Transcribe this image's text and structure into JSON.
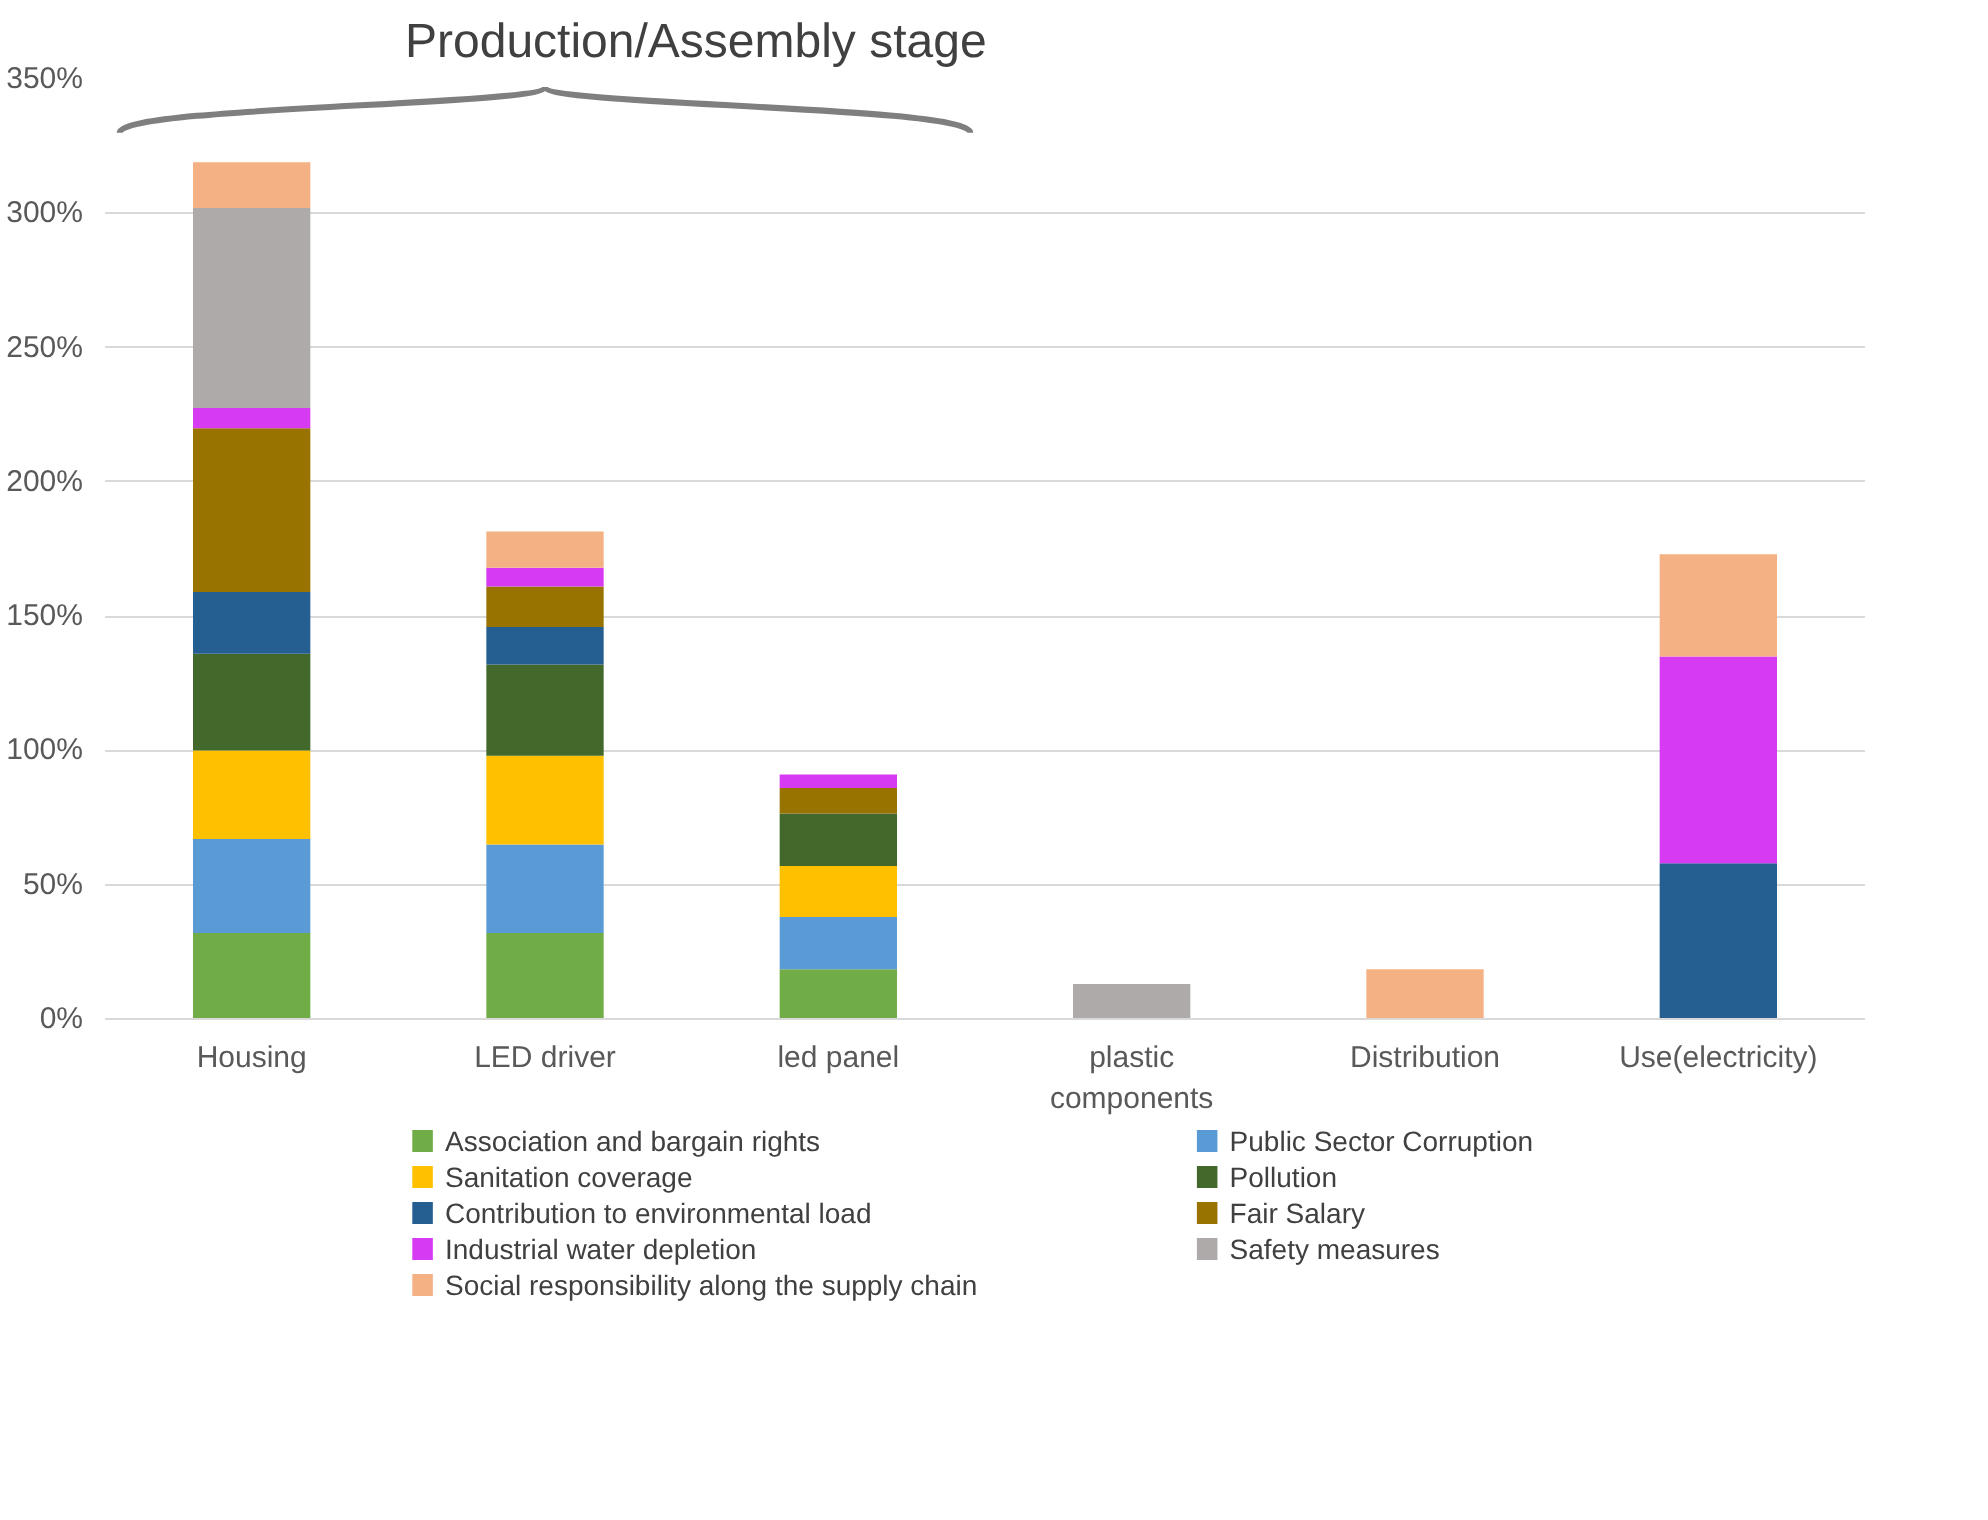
{
  "chart_data": {
    "type": "bar",
    "stacked": true,
    "categories": [
      "Housing",
      "LED driver",
      "led panel",
      "plastic components",
      "Distribution",
      "Use(electricity)"
    ],
    "series": [
      {
        "name": "Association and bargain rights",
        "color": "#70ad47",
        "values": [
          32,
          32,
          18.5,
          null,
          null,
          null
        ]
      },
      {
        "name": "Public Sector Corruption",
        "color": "#5b9bd5",
        "values": [
          35,
          33,
          19.5,
          null,
          null,
          null
        ]
      },
      {
        "name": "Sanitation coverage",
        "color": "#ffc000",
        "values": [
          33,
          33,
          19,
          null,
          null,
          null
        ]
      },
      {
        "name": "Pollution",
        "color": "#43682b",
        "values": [
          36,
          34,
          19.5,
          null,
          null,
          null
        ]
      },
      {
        "name": "Contribution to environmental load",
        "color": "#255e91",
        "values": [
          23,
          14,
          null,
          null,
          null,
          58
        ]
      },
      {
        "name": "Fair Salary",
        "color": "#997300",
        "values": [
          61,
          15,
          9.5,
          null,
          null,
          null
        ]
      },
      {
        "name": "Industrial water depletion",
        "color": "#d63af2",
        "values": [
          7.5,
          7,
          5,
          null,
          null,
          77
        ]
      },
      {
        "name": "Safety measures",
        "color": "#aeaaaa",
        "values": [
          74.5,
          null,
          null,
          13,
          null,
          null
        ]
      },
      {
        "name": "Social responsibility along the supply chain",
        "color": "#f4b183",
        "values": [
          17,
          13.5,
          null,
          null,
          18.5,
          38
        ]
      }
    ],
    "ylim": [
      0,
      350
    ],
    "yticks": [
      {
        "value": 0,
        "label": "0%"
      },
      {
        "value": 50,
        "label": "50%"
      },
      {
        "value": 100,
        "label": "100%"
      },
      {
        "value": 150,
        "label": "150%"
      },
      {
        "value": 200,
        "label": "200%"
      },
      {
        "value": 250,
        "label": "250%"
      },
      {
        "value": 300,
        "label": "300%"
      },
      {
        "value": 350,
        "label": "350%"
      }
    ],
    "grid": "y",
    "legend": "bottom",
    "annotations": [
      "Production/Assembly stage"
    ]
  }
}
